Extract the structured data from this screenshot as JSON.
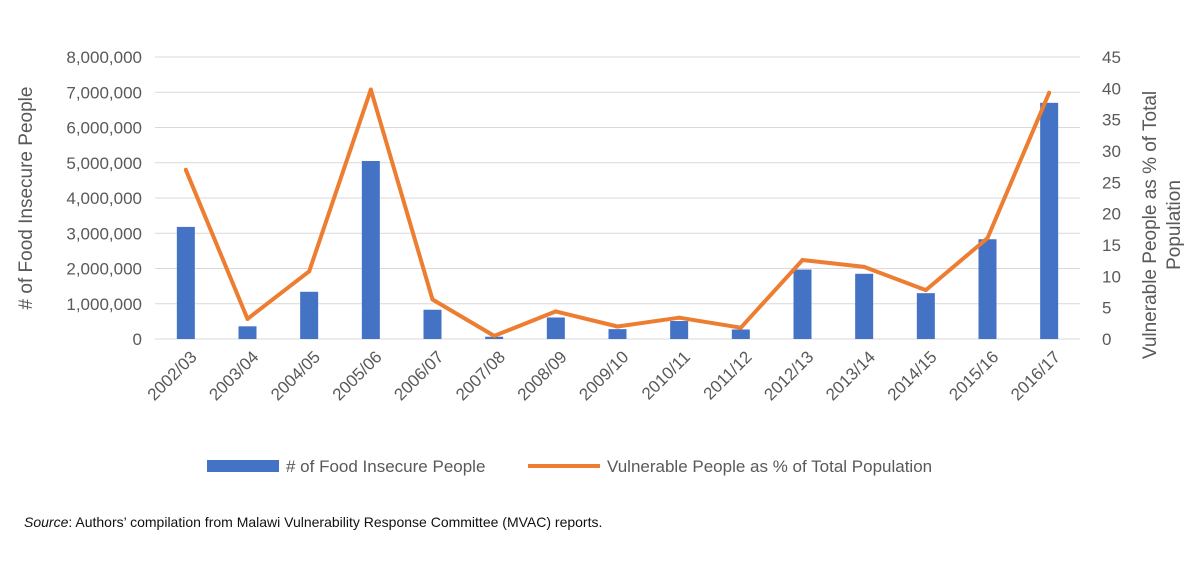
{
  "chart_data": {
    "type": "bar",
    "categories": [
      "2002/03",
      "2003/04",
      "2004/05",
      "2005/06",
      "2006/07",
      "2007/08",
      "2008/09",
      "2009/10",
      "2010/11",
      "2011/12",
      "2012/13",
      "2013/14",
      "2014/15",
      "2015/16",
      "2016/17"
    ],
    "series": [
      {
        "name": "# of Food Insecure People",
        "type": "bar",
        "axis": "left",
        "color": "#4472C4",
        "values": [
          3180000,
          360000,
          1340000,
          5050000,
          830000,
          64000,
          610000,
          280000,
          510000,
          270000,
          1970000,
          1850000,
          1300000,
          2830000,
          6700000
        ]
      },
      {
        "name": "Vulnerable People as % of Total Population",
        "type": "line",
        "axis": "right",
        "color": "#ED7D31",
        "values": [
          27.0,
          3.2,
          10.8,
          39.8,
          6.3,
          0.5,
          4.4,
          2.0,
          3.4,
          1.8,
          12.6,
          11.5,
          7.8,
          16.1,
          39.3
        ]
      }
    ],
    "ylabel": "# of Food Insecure People",
    "ylabel_right": "Vulnerable People as % of Total Population",
    "ylim": [
      0,
      8000000
    ],
    "ylim_right": [
      0,
      45
    ],
    "yticks": [
      "0",
      "1,000,000",
      "2,000,000",
      "3,000,000",
      "4,000,000",
      "5,000,000",
      "6,000,000",
      "7,000,000",
      "8,000,000"
    ],
    "yticks_right": [
      "0",
      "5",
      "10",
      "15",
      "20",
      "25",
      "30",
      "35",
      "40",
      "45"
    ],
    "grid": true,
    "legend_position": "bottom"
  },
  "source": {
    "label": "Source",
    "text": ": Authors’ compilation from Malawi Vulnerability Response Committee (MVAC) reports."
  }
}
